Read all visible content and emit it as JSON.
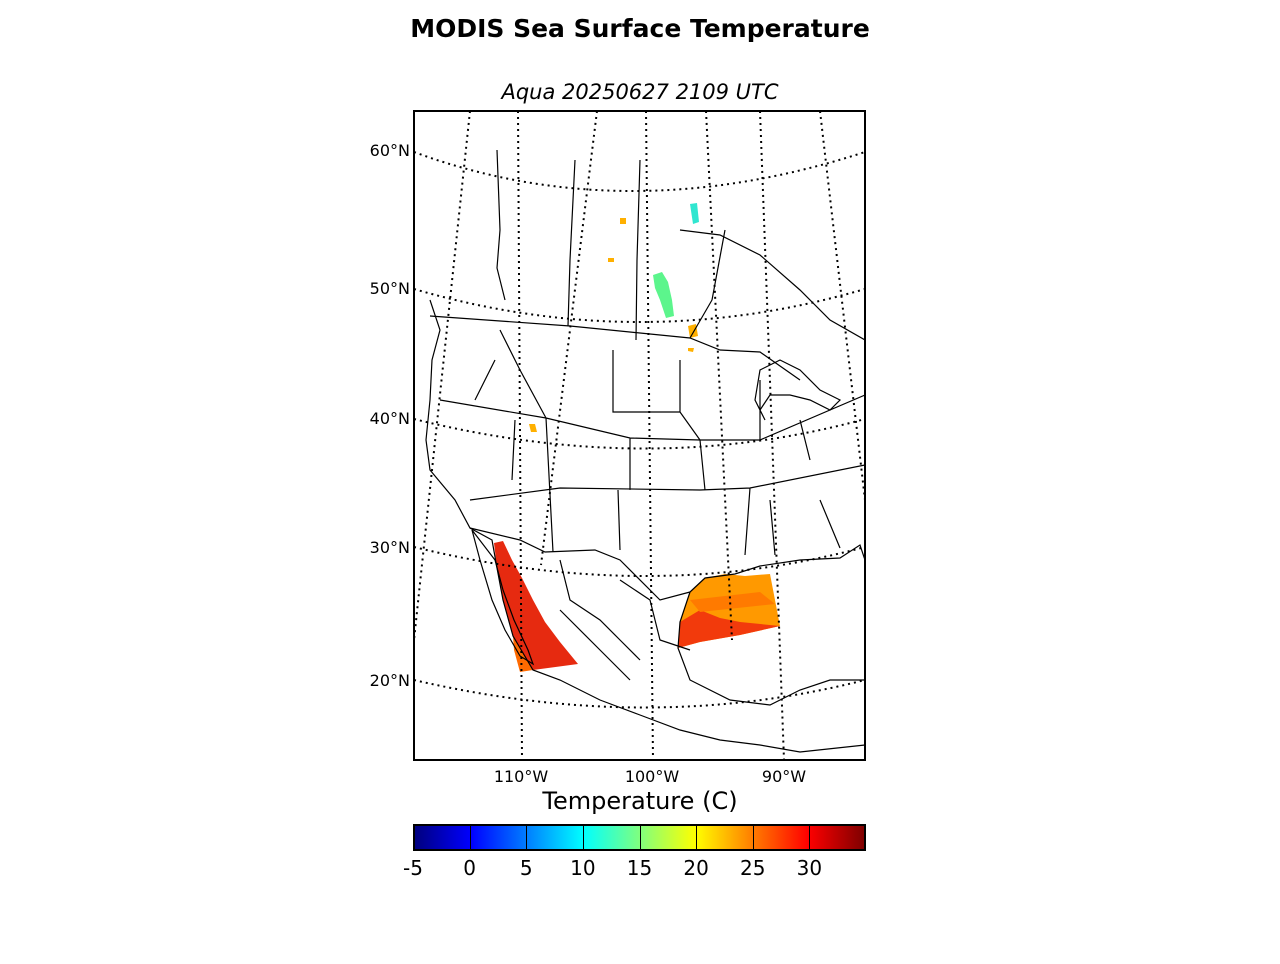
{
  "title": "MODIS Sea Surface Temperature",
  "subtitle": "Aqua 20250627 2109 UTC",
  "map": {
    "projection": "lambert conformal (North America)",
    "lat_labels": [
      "60°N",
      "50°N",
      "40°N",
      "30°N",
      "20°N"
    ],
    "lon_labels": [
      "110°W",
      "100°W",
      "90°W"
    ],
    "graticule": "dotted",
    "data_regions": [
      {
        "name": "Gulf of California",
        "sst_range_c": [
          26,
          31
        ]
      },
      {
        "name": "Northwestern Gulf of Mexico",
        "sst_range_c": [
          24,
          31
        ]
      },
      {
        "name": "Lake Winnipeg",
        "sst_range_c": [
          13,
          17
        ]
      },
      {
        "name": "Lake Winnipegosis",
        "sst_range_c": [
          10,
          12
        ]
      }
    ]
  },
  "colorbar": {
    "label": "Temperature (C)",
    "min": -5,
    "max": 35,
    "ticks": [
      "-5",
      "0",
      "5",
      "10",
      "15",
      "20",
      "25",
      "30"
    ],
    "colormap": "jet",
    "colors": [
      "#00007f",
      "#0000ff",
      "#007fff",
      "#00ffff",
      "#7fff7f",
      "#ffff00",
      "#ff7f00",
      "#ff0000",
      "#7f0000"
    ]
  }
}
